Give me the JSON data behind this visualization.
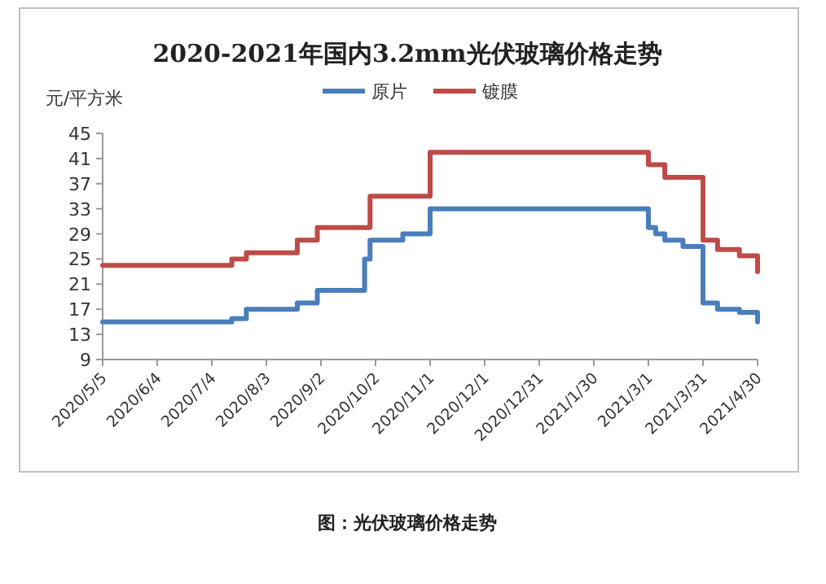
{
  "chart_data": {
    "type": "step",
    "title": "2020-2021年国内3.2mm光伏玻璃价格走势",
    "ylabel": "元/平方米",
    "legend": "top",
    "grid": false,
    "series": [
      {
        "name": "原片",
        "color": "#4a7ebb",
        "x": [
          "2020-05-05",
          "2020-07-15",
          "2020-07-23",
          "2020-08-20",
          "2020-08-31",
          "2020-09-26",
          "2020-09-29",
          "2020-10-17",
          "2020-11-01",
          "2021-03-01",
          "2021-03-05",
          "2021-03-10",
          "2021-03-20",
          "2021-03-31",
          "2021-04-08",
          "2021-04-20",
          "2021-04-30"
        ],
        "values": [
          15,
          15.5,
          17,
          18,
          20,
          25,
          28,
          29,
          33,
          30,
          29,
          28,
          27,
          18,
          17,
          16.5,
          15
        ]
      },
      {
        "name": "镀膜",
        "color": "#be4b48",
        "x": [
          "2020-05-05",
          "2020-07-15",
          "2020-07-23",
          "2020-08-20",
          "2020-08-31",
          "2020-09-29",
          "2020-11-01",
          "2021-03-01",
          "2021-03-10",
          "2021-03-31",
          "2021-04-08",
          "2021-04-20",
          "2021-04-30"
        ],
        "values": [
          24,
          25,
          26,
          28,
          30,
          35,
          42,
          40,
          38,
          28,
          26.5,
          25.5,
          23
        ]
      }
    ],
    "ylim": [
      9,
      45
    ],
    "yticks": [
      9,
      13,
      17,
      21,
      25,
      29,
      33,
      37,
      41,
      45
    ],
    "xlim": [
      "2020-05-05",
      "2021-04-30"
    ],
    "xticks": [
      {
        "value": "2020-05-05",
        "label": "2020/5/5"
      },
      {
        "value": "2020-06-04",
        "label": "2020/6/4"
      },
      {
        "value": "2020-07-04",
        "label": "2020/7/4"
      },
      {
        "value": "2020-08-03",
        "label": "2020/8/3"
      },
      {
        "value": "2020-09-02",
        "label": "2020/9/2"
      },
      {
        "value": "2020-10-02",
        "label": "2020/10/2"
      },
      {
        "value": "2020-11-01",
        "label": "2020/11/1"
      },
      {
        "value": "2020-12-01",
        "label": "2020/12/1"
      },
      {
        "value": "2020-12-31",
        "label": "2020/12/31"
      },
      {
        "value": "2021-01-30",
        "label": "2021/1/30"
      },
      {
        "value": "2021-03-01",
        "label": "2021/3/1"
      },
      {
        "value": "2021-03-31",
        "label": "2021/3/31"
      },
      {
        "value": "2021-04-30",
        "label": "2021/4/30"
      }
    ],
    "annotations": [
      "图：光伏玻璃价格走势"
    ]
  }
}
